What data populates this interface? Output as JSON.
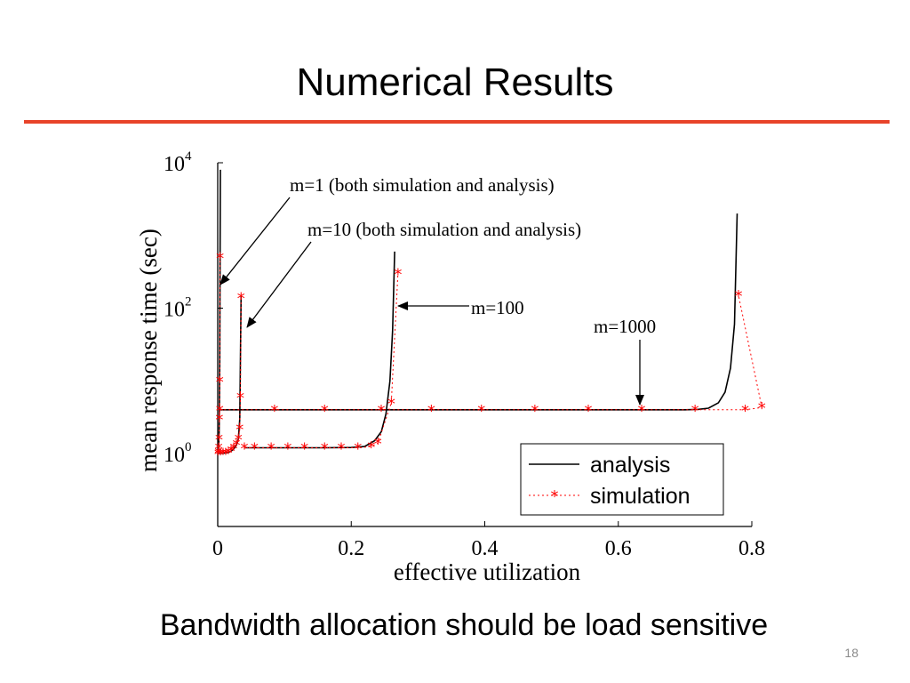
{
  "slide": {
    "title": "Numerical Results",
    "caption": "Bandwidth allocation should be load sensitive",
    "page_number": "18",
    "accent_color": "#e8432a"
  },
  "chart_data": {
    "type": "line",
    "xlabel": "effective utilization",
    "ylabel": "mean response time (sec)",
    "xscale": "linear",
    "yscale": "log",
    "xlim": [
      0,
      0.8
    ],
    "ylim": [
      0.03,
      10000
    ],
    "x_ticks": [
      0,
      0.2,
      0.4,
      0.6,
      0.8
    ],
    "x_tick_labels": [
      "0",
      "0.2",
      "0.4",
      "0.6",
      "0.8"
    ],
    "y_ticks": [
      1,
      100,
      10000
    ],
    "y_tick_labels": [
      {
        "base": "10",
        "exp": "0"
      },
      {
        "base": "10",
        "exp": "2"
      },
      {
        "base": "10",
        "exp": "4"
      }
    ],
    "grid": false,
    "legend": {
      "placement": "bottom-right",
      "entries": [
        {
          "label": "analysis",
          "style": "solid",
          "color": "#000000"
        },
        {
          "label": "simulation",
          "style": "dotted-star",
          "color": "#ff0000"
        }
      ]
    },
    "annotations": [
      {
        "text": "m=1 (both simulation and analysis)",
        "target_x": 0.002,
        "target_y": 200
      },
      {
        "text": "m=10 (both simulation and analysis)",
        "target_x": 0.04,
        "target_y": 80
      },
      {
        "text": "m=100",
        "target_x": 0.27,
        "target_y": 100
      },
      {
        "text": "m=1000",
        "target_x": 0.63,
        "target_y": 4
      }
    ],
    "series": [
      {
        "group": "m=1",
        "kind": "analysis",
        "x": [
          0,
          0.0005,
          0.001,
          0.0015,
          0.002,
          0.0025,
          0.003,
          0.0035,
          0.004
        ],
        "y": [
          1,
          1.01,
          1.04,
          1.2,
          1.8,
          4,
          20,
          300,
          8000
        ]
      },
      {
        "group": "m=1",
        "kind": "simulation",
        "x": [
          0.0005,
          0.001,
          0.0015,
          0.002,
          0.0025,
          0.003,
          0.0035
        ],
        "y": [
          1,
          1.05,
          1.2,
          1.6,
          3,
          10,
          500
        ]
      },
      {
        "group": "m=10",
        "kind": "analysis",
        "x": [
          0.004,
          0.008,
          0.012,
          0.016,
          0.02,
          0.024,
          0.028,
          0.031,
          0.033,
          0.035
        ],
        "y": [
          1,
          1.01,
          1.02,
          1.04,
          1.08,
          1.15,
          1.3,
          1.6,
          3,
          150
        ]
      },
      {
        "group": "m=10",
        "kind": "simulation",
        "x": [
          0.004,
          0.008,
          0.012,
          0.016,
          0.02,
          0.024,
          0.028,
          0.031,
          0.033,
          0.034,
          0.035
        ],
        "y": [
          1,
          1.01,
          1.02,
          1.05,
          1.1,
          1.2,
          1.35,
          1.6,
          2.2,
          6,
          140
        ]
      },
      {
        "group": "m=100",
        "kind": "analysis",
        "x": [
          0.04,
          0.08,
          0.12,
          0.16,
          0.2,
          0.22,
          0.235,
          0.245,
          0.252,
          0.258,
          0.262,
          0.265
        ],
        "y": [
          1.2,
          1.2,
          1.2,
          1.2,
          1.21,
          1.25,
          1.5,
          2,
          3.5,
          10,
          50,
          600
        ]
      },
      {
        "group": "m=100",
        "kind": "simulation",
        "x": [
          0.04,
          0.055,
          0.08,
          0.105,
          0.13,
          0.16,
          0.185,
          0.21,
          0.23,
          0.24,
          0.26,
          0.27
        ],
        "y": [
          1.2,
          1.2,
          1.2,
          1.2,
          1.2,
          1.2,
          1.2,
          1.2,
          1.25,
          1.4,
          5,
          300
        ]
      },
      {
        "group": "m=1000",
        "kind": "analysis",
        "x": [
          0.003,
          0.1,
          0.2,
          0.3,
          0.4,
          0.5,
          0.6,
          0.7,
          0.72,
          0.735,
          0.75,
          0.76,
          0.768,
          0.774,
          0.778
        ],
        "y": [
          4,
          4,
          4,
          4,
          4,
          4,
          4,
          4,
          4.05,
          4.2,
          5,
          7,
          15,
          60,
          2000
        ]
      },
      {
        "group": "m=1000",
        "kind": "simulation",
        "x": [
          0.003,
          0.085,
          0.16,
          0.245,
          0.32,
          0.395,
          0.475,
          0.555,
          0.635,
          0.715,
          0.79,
          0.815,
          0.78
        ],
        "y": [
          4,
          4,
          4,
          4,
          4,
          4,
          4,
          4,
          4,
          4,
          4,
          4.3,
          150
        ]
      }
    ]
  }
}
